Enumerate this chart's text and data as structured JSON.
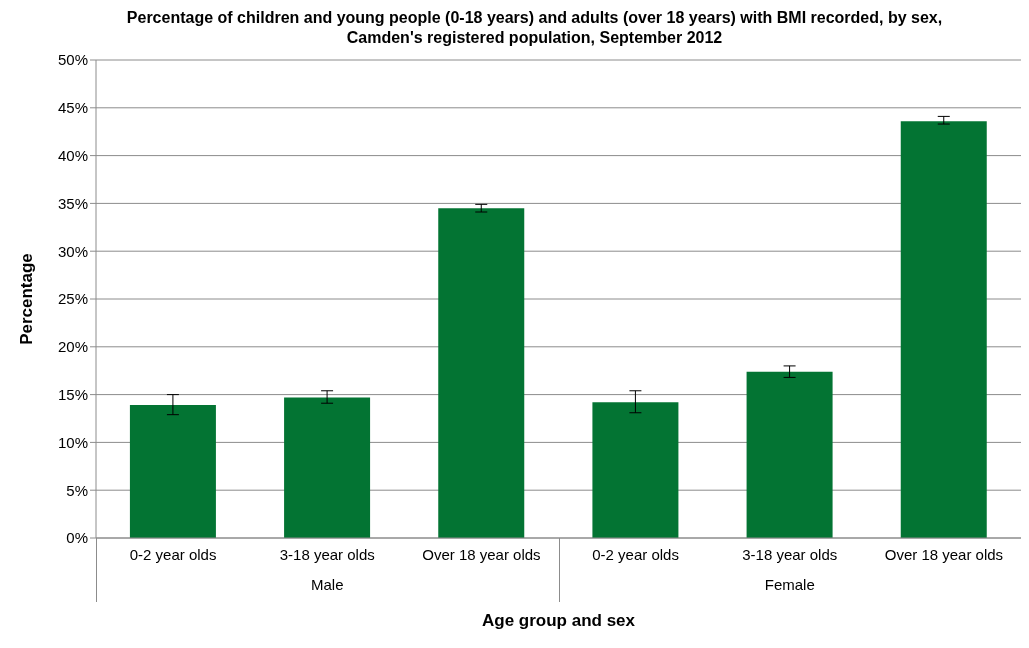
{
  "chart_data": {
    "type": "bar",
    "title": "Percentage of children and young people (0-18 years) and adults (over 18 years) with BMI recorded, by sex, Camden's registered population, September 2012",
    "xlabel": "Age group and sex",
    "ylabel": "Percentage",
    "categories": [
      "0-2 year olds",
      "3-18 year olds",
      "Over 18 year olds",
      "0-2 year olds",
      "3-18 year olds",
      "Over 18 year olds"
    ],
    "values": [
      13.9,
      14.7,
      34.5,
      14.2,
      17.4,
      43.6
    ],
    "errors": [
      [
        12.9,
        15.0
      ],
      [
        14.1,
        15.4
      ],
      [
        34.1,
        34.9
      ],
      [
        13.1,
        15.4
      ],
      [
        16.8,
        18.0
      ],
      [
        43.3,
        44.1
      ]
    ],
    "color": "#037433",
    "annotations": [
      "Male",
      "Female"
    ],
    "ylim": [
      0,
      50
    ],
    "yticks": [
      {
        "value": 0,
        "label": "0%"
      },
      {
        "value": 5,
        "label": "5%"
      },
      {
        "value": 10,
        "label": "10%"
      },
      {
        "value": 15,
        "label": "15%"
      },
      {
        "value": 20,
        "label": "20%"
      },
      {
        "value": 25,
        "label": "25%"
      },
      {
        "value": 30,
        "label": "30%"
      },
      {
        "value": 35,
        "label": "35%"
      },
      {
        "value": 40,
        "label": "40%"
      },
      {
        "value": 45,
        "label": "45%"
      },
      {
        "value": 50,
        "label": "50%"
      }
    ],
    "grid": "y"
  }
}
